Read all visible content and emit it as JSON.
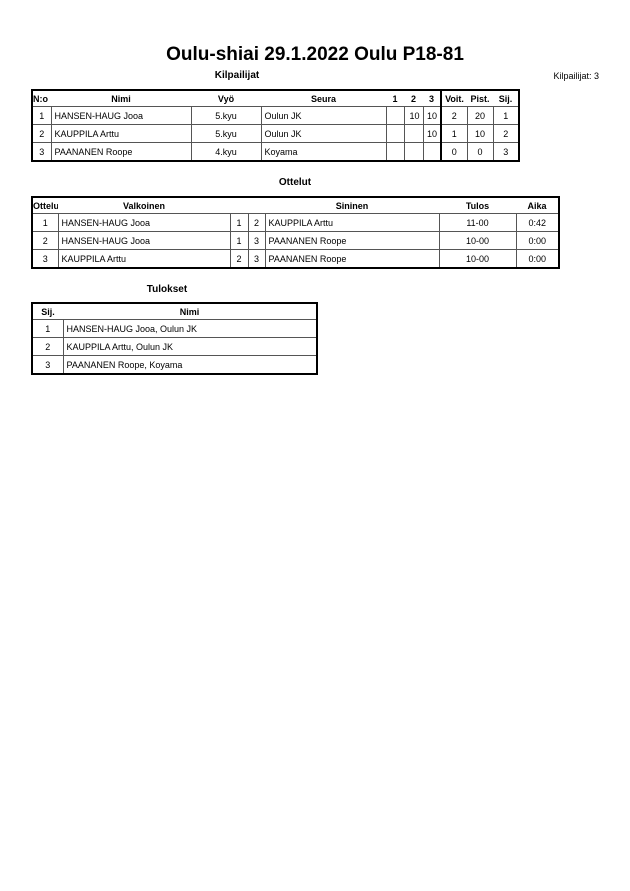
{
  "title": "Oulu-shiai  29.1.2022  Oulu   P18-81",
  "competitors": {
    "heading": "Kilpailijat",
    "count_label": "Kilpailijat: 3",
    "headers": [
      "N:o",
      "Nimi",
      "Vyö",
      "Seura",
      "1",
      "2",
      "3",
      "Voit.",
      "Pist.",
      "Sij."
    ],
    "rows": [
      [
        "1",
        "HANSEN-HAUG Jooa",
        "5.kyu",
        "Oulun JK",
        "",
        "10",
        "10",
        "2",
        "20",
        "1"
      ],
      [
        "2",
        "KAUPPILA Arttu",
        "5.kyu",
        "Oulun JK",
        "",
        "",
        "10",
        "1",
        "10",
        "2"
      ],
      [
        "3",
        "PAANANEN Roope",
        "4.kyu",
        "Koyama",
        "",
        "",
        "",
        "0",
        "0",
        "3"
      ]
    ]
  },
  "matches": {
    "heading": "Ottelut",
    "headers": [
      "Ottelu",
      "Valkoinen",
      "Sininen",
      "Tulos",
      "Aika"
    ],
    "rows": [
      [
        "1",
        "HANSEN-HAUG Jooa",
        "1",
        "2",
        "KAUPPILA Arttu",
        "11-00",
        "0:42"
      ],
      [
        "2",
        "HANSEN-HAUG Jooa",
        "1",
        "3",
        "PAANANEN Roope",
        "10-00",
        "0:00"
      ],
      [
        "3",
        "KAUPPILA Arttu",
        "2",
        "3",
        "PAANANEN Roope",
        "10-00",
        "0:00"
      ]
    ]
  },
  "results": {
    "heading": "Tulokset",
    "headers": [
      "Sij.",
      "Nimi"
    ],
    "rows": [
      [
        "1",
        "HANSEN-HAUG Jooa, Oulun JK"
      ],
      [
        "2",
        "KAUPPILA Arttu, Oulun JK"
      ],
      [
        "3",
        "PAANANEN Roope, Koyama"
      ]
    ]
  }
}
